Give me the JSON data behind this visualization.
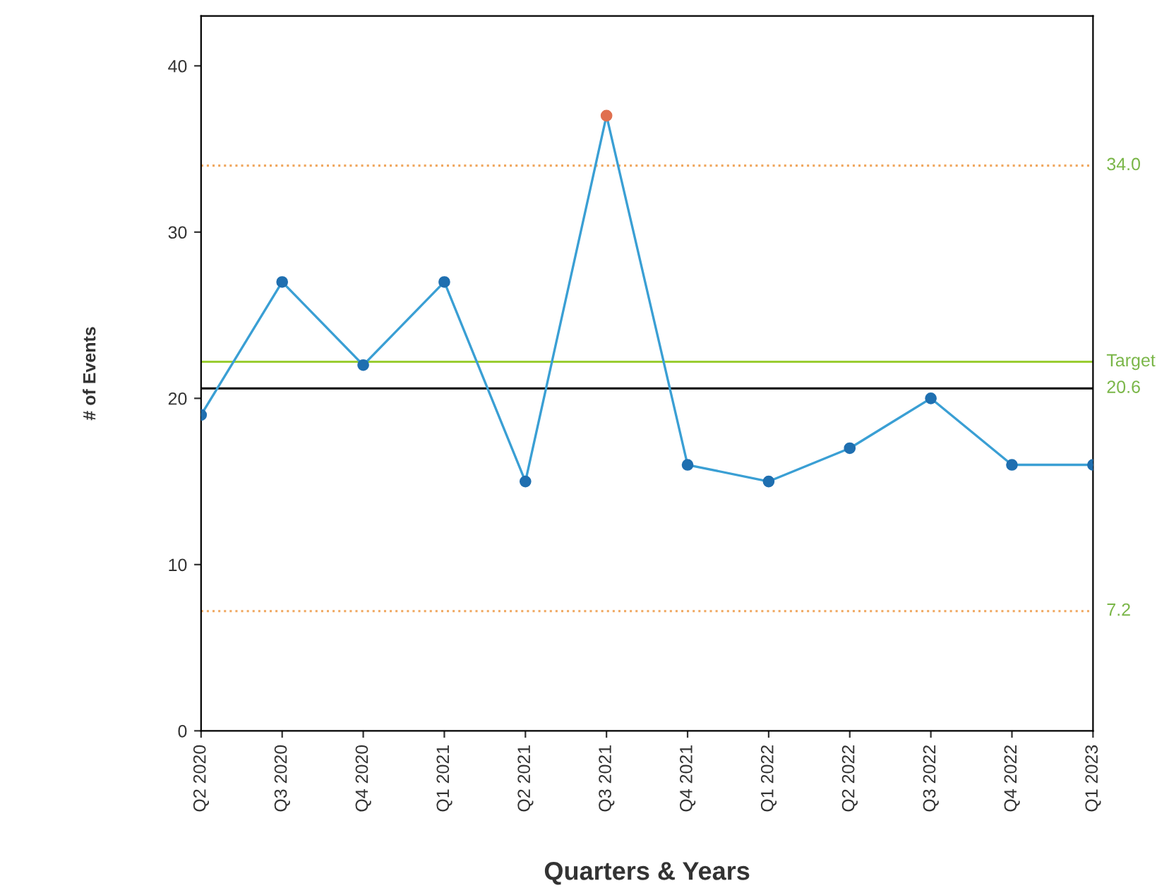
{
  "chart_data": {
    "type": "line",
    "xlabel": "Quarters & Years",
    "ylabel": "# of Events",
    "categories": [
      "Q2 2020",
      "Q3 2020",
      "Q4 2020",
      "Q1 2021",
      "Q2 2021",
      "Q3 2021",
      "Q4 2021",
      "Q1 2022",
      "Q2 2022",
      "Q3 2022",
      "Q4 2022",
      "Q1 2023"
    ],
    "series": [
      {
        "color": "#3a9fd4",
        "values": [
          19,
          27,
          22,
          27,
          15,
          37,
          16,
          15,
          17,
          20,
          16,
          16
        ],
        "colors": [
          "#1f6fb0",
          "#1f6fb0",
          "#1f6fb0",
          "#1f6fb0",
          "#1f6fb0",
          "#e07050",
          "#1f6fb0",
          "#1f6fb0",
          "#1f6fb0",
          "#1f6fb0",
          "#1f6fb0",
          "#1f6fb0"
        ]
      }
    ],
    "ylim": [
      0,
      43
    ],
    "yticks": [
      0,
      10,
      20,
      30,
      40
    ],
    "grid": false,
    "marker": "circle",
    "line_style": "solid",
    "ref_lines": [
      {
        "axis": "y",
        "value": 34.0,
        "label": "34.0",
        "color": "#f0a860",
        "line_style": "dotted"
      },
      {
        "axis": "y",
        "value": 22.2,
        "label": "Target",
        "color": "#9acd32",
        "line_style": "solid"
      },
      {
        "axis": "y",
        "value": 20.6,
        "label": "20.6",
        "color": "#000000",
        "line_style": "solid"
      },
      {
        "axis": "y",
        "value": 7.2,
        "label": "7.2",
        "color": "#f0a860",
        "line_style": "dotted"
      }
    ]
  }
}
